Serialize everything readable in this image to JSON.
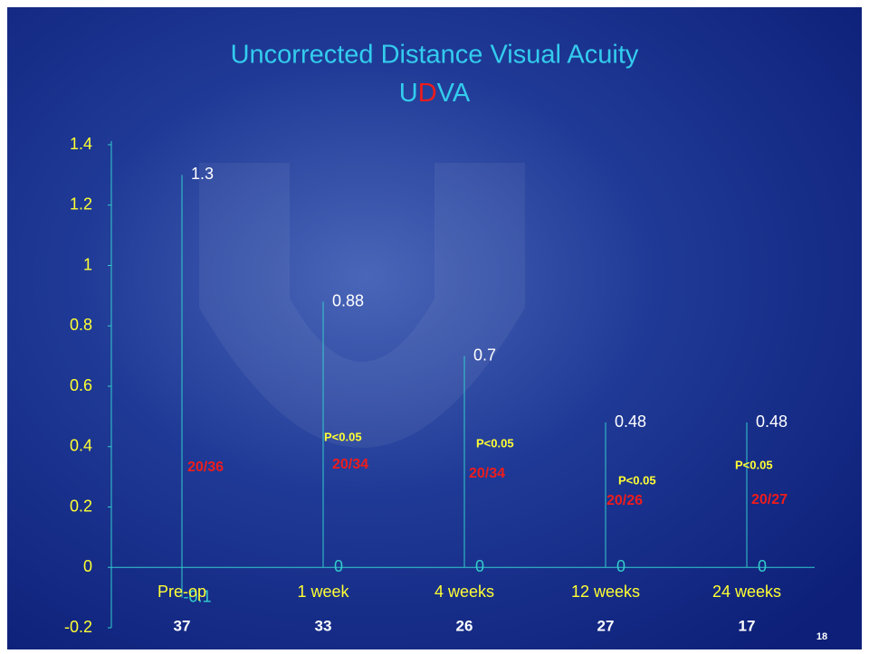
{
  "chart_data": {
    "type": "high-low",
    "title": "Uncorrected Distance Visual Acuity",
    "subtitle_parts": [
      "U",
      "D",
      "VA"
    ],
    "categories": [
      "Pre-op",
      "1 week",
      "4 weeks",
      "12 weeks",
      "24 weeks"
    ],
    "series": [
      {
        "color": "#ffffff",
        "values": [
          1.3,
          0.88,
          0.7,
          0.48,
          0.48
        ]
      },
      {
        "color": "#33cccc",
        "values": [
          -0.1,
          0,
          0,
          0,
          0
        ]
      }
    ],
    "ylim": [
      -0.2,
      1.4
    ],
    "yticks": [
      -0.2,
      0,
      0.2,
      0.4,
      0.6,
      0.8,
      1,
      1.2,
      1.4
    ],
    "snellen": [
      "20/36",
      "20/34",
      "20/34",
      "20/26",
      "20/27"
    ],
    "p_values": [
      null,
      "P<0.05",
      "P<0.05",
      "P<0.05",
      "P<0.05"
    ],
    "counts": [
      "37",
      "33",
      "26",
      "27",
      "17"
    ],
    "page_number": "18"
  }
}
